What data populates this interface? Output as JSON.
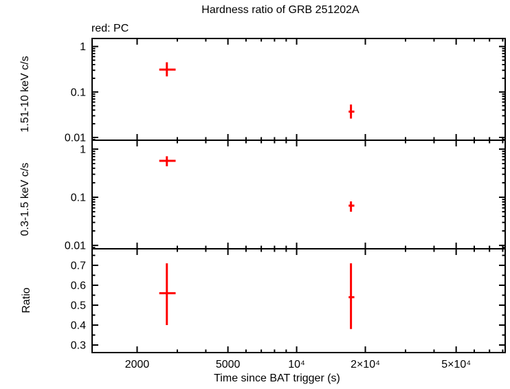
{
  "chart_data": {
    "type": "scatter",
    "title": "Hardness ratio of GRB 251202A",
    "annotation": "red: PC",
    "annotation_color": "#000000",
    "xlabel": "Time since BAT trigger (s)",
    "xscale": "log",
    "xlim": [
      1270,
      82000
    ],
    "grid": false,
    "legend_position": "top-left",
    "color": "#ff0000",
    "frame_color": "#000000",
    "background_color": "#ffffff",
    "xticks": [
      {
        "value": 2000,
        "label": "2000"
      },
      {
        "value": 5000,
        "label": "5000"
      },
      {
        "value": 10000,
        "label": "10⁴"
      },
      {
        "value": 20000,
        "label": "2×10⁴"
      },
      {
        "value": 50000,
        "label": "5×10⁴"
      }
    ],
    "panels": [
      {
        "name": "hard-rate",
        "ylabel": "1.51-10 keV c/s",
        "yscale": "log",
        "ylim": [
          0.0087,
          1.5
        ],
        "yticks": [
          {
            "value": 1,
            "label": "1"
          },
          {
            "value": 0.1,
            "label": "0.1"
          },
          {
            "value": 0.01,
            "label": "0.01"
          }
        ],
        "points": [
          {
            "t": 2700,
            "t_lo": 2500,
            "t_hi": 2950,
            "y": 0.31,
            "y_lo": 0.22,
            "y_hi": 0.45
          },
          {
            "t": 17300,
            "t_lo": 16900,
            "t_hi": 17900,
            "y": 0.037,
            "y_lo": 0.026,
            "y_hi": 0.053
          }
        ]
      },
      {
        "name": "soft-rate",
        "ylabel": "0.3-1.5 keV c/s",
        "yscale": "log",
        "ylim": [
          0.0085,
          1.53
        ],
        "yticks": [
          {
            "value": 1,
            "label": "1"
          },
          {
            "value": 0.1,
            "label": "0.1"
          },
          {
            "value": 0.01,
            "label": "0.01"
          }
        ],
        "points": [
          {
            "t": 2700,
            "t_lo": 2500,
            "t_hi": 2950,
            "y": 0.57,
            "y_lo": 0.44,
            "y_hi": 0.71
          },
          {
            "t": 17300,
            "t_lo": 16900,
            "t_hi": 17900,
            "y": 0.067,
            "y_lo": 0.05,
            "y_hi": 0.082
          }
        ]
      },
      {
        "name": "ratio",
        "ylabel": "Ratio",
        "yscale": "linear",
        "ylim": [
          0.262,
          0.783
        ],
        "yticks": [
          {
            "value": 0.7,
            "label": "0.7"
          },
          {
            "value": 0.6,
            "label": "0.6"
          },
          {
            "value": 0.5,
            "label": "0.5"
          },
          {
            "value": 0.4,
            "label": "0.4"
          },
          {
            "value": 0.3,
            "label": "0.3"
          }
        ],
        "points": [
          {
            "t": 2700,
            "t_lo": 2500,
            "t_hi": 2950,
            "y": 0.56,
            "y_lo": 0.4,
            "y_hi": 0.71
          },
          {
            "t": 17300,
            "t_lo": 16900,
            "t_hi": 17900,
            "y": 0.54,
            "y_lo": 0.38,
            "y_hi": 0.71
          }
        ]
      }
    ]
  }
}
